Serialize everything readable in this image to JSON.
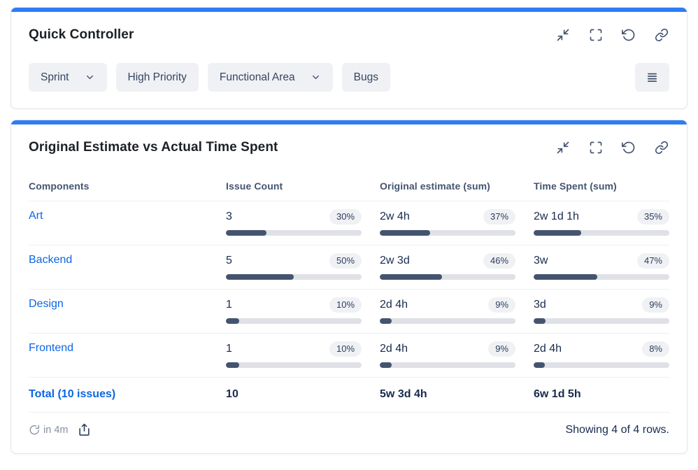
{
  "colors": {
    "accent_blue": "#2E7CF6",
    "link_blue": "#0C66E4",
    "text_dark": "#172B4D",
    "text_muted": "#44546F",
    "bar_fill": "#44546F",
    "bar_track": "#DFE1E6",
    "chip_bg": "#F0F1F4"
  },
  "quick_controller": {
    "title": "Quick Controller",
    "filters": [
      {
        "label": "Sprint",
        "dropdown": true
      },
      {
        "label": "High Priority",
        "dropdown": false
      },
      {
        "label": "Functional Area",
        "dropdown": true
      },
      {
        "label": "Bugs",
        "dropdown": false
      }
    ]
  },
  "estimate_panel": {
    "title": "Original Estimate vs Actual Time Spent",
    "table": {
      "columns": [
        "Components",
        "Issue Count",
        "Original estimate (sum)",
        "Time Spent (sum)"
      ],
      "rows": [
        {
          "component": "Art",
          "issue_count": "3",
          "issue_pct": "30%",
          "issue_bar": 30,
          "orig": "2w 4h",
          "orig_pct": "37%",
          "orig_bar": 37,
          "spent": "2w 1d 1h",
          "spent_pct": "35%",
          "spent_bar": 35
        },
        {
          "component": "Backend",
          "issue_count": "5",
          "issue_pct": "50%",
          "issue_bar": 50,
          "orig": "2w 3d",
          "orig_pct": "46%",
          "orig_bar": 46,
          "spent": "3w",
          "spent_pct": "47%",
          "spent_bar": 47
        },
        {
          "component": "Design",
          "issue_count": "1",
          "issue_pct": "10%",
          "issue_bar": 10,
          "orig": "2d 4h",
          "orig_pct": "9%",
          "orig_bar": 9,
          "spent": "3d",
          "spent_pct": "9%",
          "spent_bar": 9
        },
        {
          "component": "Frontend",
          "issue_count": "1",
          "issue_pct": "10%",
          "issue_bar": 10,
          "orig": "2d 4h",
          "orig_pct": "9%",
          "orig_bar": 9,
          "spent": "2d 4h",
          "spent_pct": "8%",
          "spent_bar": 8
        }
      ],
      "total": {
        "label": "Total (10 issues)",
        "issue_count": "10",
        "orig": "5w 3d 4h",
        "spent": "6w 1d 5h"
      }
    },
    "footer": {
      "refresh_in": "in 4m",
      "showing": "Showing 4 of 4 rows."
    }
  }
}
